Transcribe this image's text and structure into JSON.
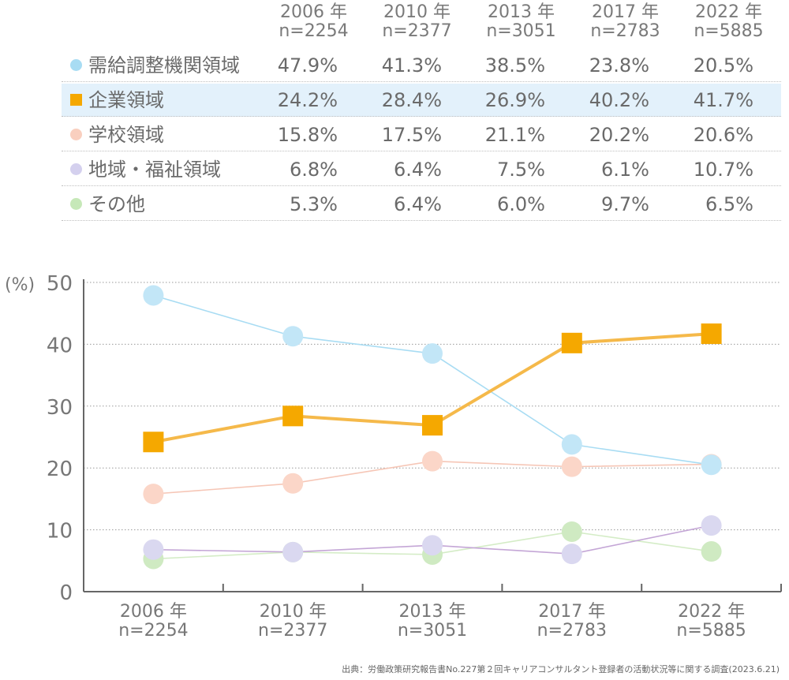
{
  "table": {
    "headers": [
      {
        "year": "2006 年",
        "n": "n=2254"
      },
      {
        "year": "2010 年",
        "n": "n=2377"
      },
      {
        "year": "2013 年",
        "n": "n=3051"
      },
      {
        "year": "2017 年",
        "n": "n=2783"
      },
      {
        "year": "2022 年",
        "n": "n=5885"
      }
    ],
    "rows": [
      {
        "label": "需給調整機関領域",
        "marker": "circle",
        "color": "#a8dcf3",
        "values": [
          "47.9%",
          "41.3%",
          "38.5%",
          "23.8%",
          "20.5%"
        ]
      },
      {
        "label": "企業領域",
        "marker": "square",
        "color": "#f5a800",
        "highlight": true,
        "values": [
          "24.2%",
          "28.4%",
          "26.9%",
          "40.2%",
          "41.7%"
        ]
      },
      {
        "label": "学校領域",
        "marker": "circle",
        "color": "#f9cfbf",
        "values": [
          "15.8%",
          "17.5%",
          "21.1%",
          "20.2%",
          "20.6%"
        ]
      },
      {
        "label": "地域・福祉領域",
        "marker": "circle",
        "color": "#d4d0ee",
        "values": [
          "6.8%",
          "6.4%",
          "7.5%",
          "6.1%",
          "10.7%"
        ]
      },
      {
        "label": "その他",
        "marker": "circle",
        "color": "#c6e8b8",
        "values": [
          "5.3%",
          "6.4%",
          "6.0%",
          "9.7%",
          "6.5%"
        ]
      }
    ]
  },
  "chart_data": {
    "type": "line",
    "y_unit_label": "(%)",
    "ylim": [
      0,
      50
    ],
    "yticks": [
      0,
      10,
      20,
      30,
      40,
      50
    ],
    "grid": true,
    "categories": [
      {
        "year": "2006 年",
        "n": "n=2254"
      },
      {
        "year": "2010 年",
        "n": "n=2377"
      },
      {
        "year": "2013 年",
        "n": "n=3051"
      },
      {
        "year": "2017 年",
        "n": "n=2783"
      },
      {
        "year": "2022 年",
        "n": "n=5885"
      }
    ],
    "series": [
      {
        "name": "需給調整機関領域",
        "marker": "circle",
        "color": "#c2e6f7",
        "line_color": "#a8dcf3",
        "values": [
          47.9,
          41.3,
          38.5,
          23.8,
          20.5
        ]
      },
      {
        "name": "企業領域",
        "marker": "square",
        "color": "#f5a800",
        "line_color": "#f5b94a",
        "values": [
          24.2,
          28.4,
          26.9,
          40.2,
          41.7
        ]
      },
      {
        "name": "学校領域",
        "marker": "circle",
        "color": "#fbd6c8",
        "line_color": "#f6c6b6",
        "values": [
          15.8,
          17.5,
          21.1,
          20.2,
          20.6
        ]
      },
      {
        "name": "地域・福祉領域",
        "marker": "circle",
        "color": "#dad8f0",
        "line_color": "#c4a6d6",
        "values": [
          6.8,
          6.4,
          7.5,
          6.1,
          10.7
        ]
      },
      {
        "name": "その他",
        "marker": "circle",
        "color": "#cfeac2",
        "line_color": "#d4ecc6",
        "values": [
          5.3,
          6.4,
          6.0,
          9.7,
          6.5
        ]
      }
    ]
  },
  "source": "出典：労働政策研究報告書No.227第２回キャリアコンサルタント登録者の活動状況等に関する調査(2023.6.21)"
}
